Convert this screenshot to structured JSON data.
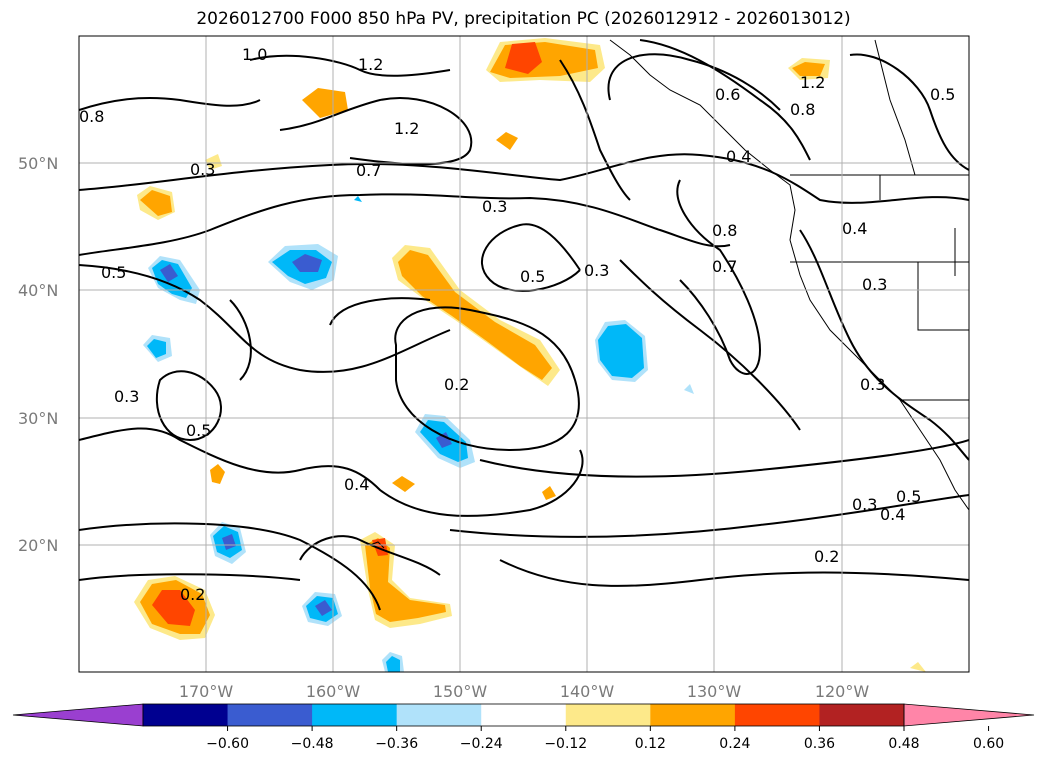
{
  "title": "2026012700 F000 850 hPa PV, precipitation PC (2026012912 - 2026013012)",
  "map": {
    "lat_labels": [
      "50°N",
      "40°N",
      "30°N",
      "20°N"
    ],
    "lon_labels": [
      "170°W",
      "160°W",
      "150°W",
      "140°W",
      "130°W",
      "120°W"
    ],
    "contour_labels": [
      "1.0",
      "1.2",
      "0.8",
      "1.2",
      "1.2",
      "0.6",
      "0.7",
      "0.4",
      "0.3",
      "0.5",
      "0.3",
      "0.8",
      "0.7",
      "0.5",
      "0.3",
      "0.2",
      "0.5",
      "0.4",
      "0.2",
      "0.2",
      "0.3",
      "0.4",
      "0.3",
      "0.8",
      "0.5",
      "0.3",
      "0.4",
      "0.5",
      "0.3"
    ],
    "contour_units": "PV",
    "shading_variable": "precipitation PC"
  },
  "colorbar": {
    "ticks": [
      "−0.60",
      "−0.48",
      "−0.36",
      "−0.24",
      "−0.12",
      "0.12",
      "0.24",
      "0.36",
      "0.48",
      "0.60"
    ],
    "colors": [
      "#9a3fd0",
      "#000090",
      "#3a5cd0",
      "#00b8f8",
      "#b0e2fa",
      "#ffffff",
      "#fde98a",
      "#ffa500",
      "#ff4500",
      "#b22222",
      "#ff85a8"
    ]
  }
}
